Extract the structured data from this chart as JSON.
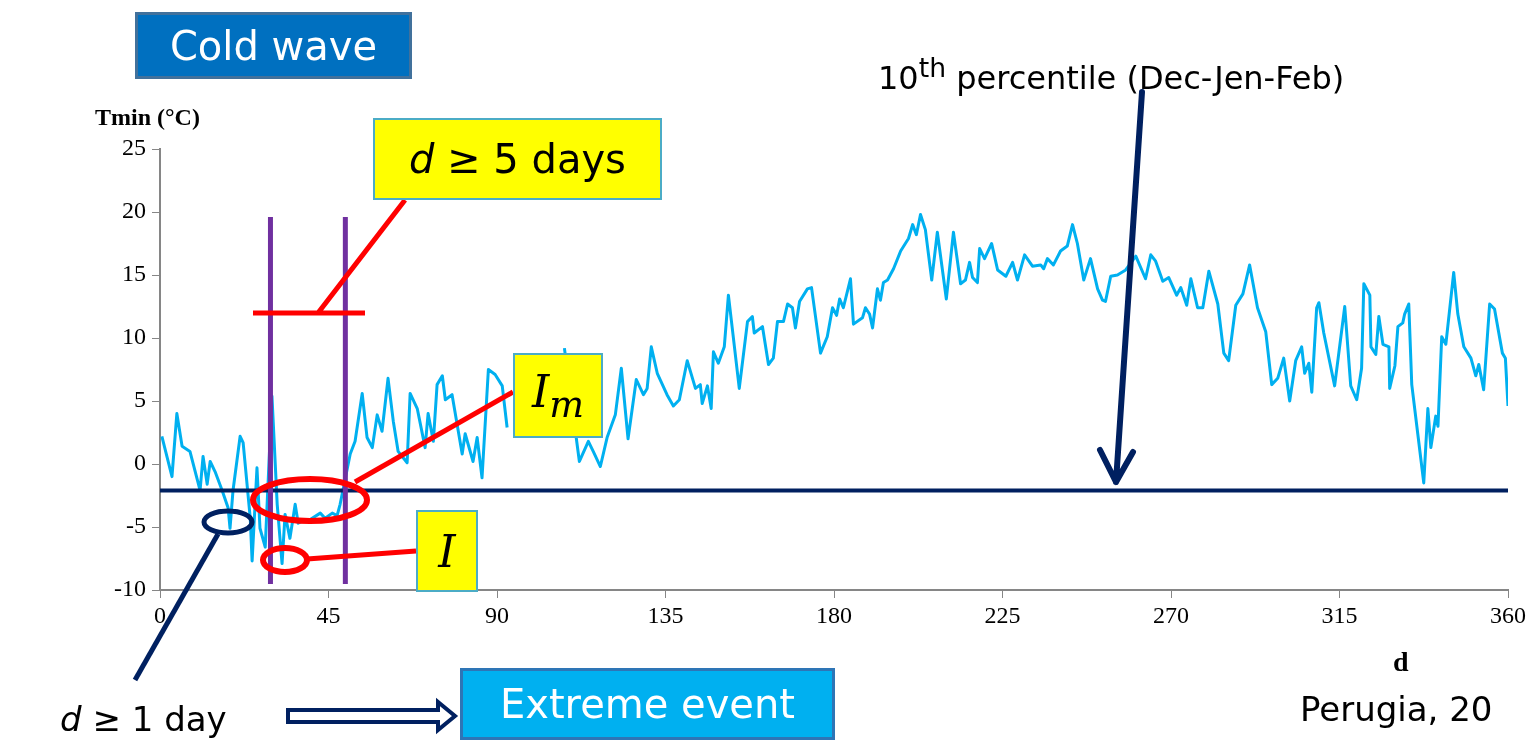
{
  "chart_data": {
    "type": "line",
    "xlabel": "d",
    "ylabel": "Tmin (°C)",
    "x": [
      0.5,
      3.2,
      4.5,
      5.9,
      8,
      10.7,
      11.5,
      12.6,
      13.4,
      14.7,
      16.6,
      18.2,
      18.7,
      19.5,
      21.4,
      22.2,
      24.1,
      24.6,
      25.9,
      26.7,
      28.1,
      29.9,
      31.3,
      32.6,
      33.4,
      34.7,
      36.1,
      36.9,
      38.2,
      40.1,
      42.8,
      44.1,
      46,
      47.3,
      48.1,
      50.8,
      52.1,
      54,
      55.3,
      56.7,
      58,
      59.3,
      60.9,
      62.3,
      63.6,
      66,
      66.8,
      68.7,
      70.8,
      71.6,
      73,
      74,
      75.4,
      76.2,
      78,
      80.7,
      81.5,
      83.6,
      84.7,
      86,
      87.7,
      89.5,
      91.4,
      92.7,
      97,
      104,
      108,
      112,
      114.4,
      115.7,
      117.6,
      119.4,
      121.6,
      123.2,
      125,
      127.2,
      129.1,
      130.1,
      131.2,
      132.8,
      135.4,
      137.1,
      138.7,
      140.8,
      143,
      144.3,
      144.8,
      146.2,
      147.2,
      147.8,
      149.1,
      150.7,
      151.8,
      154.7,
      156.9,
      158.2,
      158.7,
      160.9,
      162.5,
      163.8,
      164.9,
      166.5,
      167.6,
      168.9,
      169.7,
      170.8,
      172.9,
      174,
      176.4,
      178.2,
      179.6,
      180.7,
      181.5,
      182.5,
      184.4,
      185.2,
      187.6,
      188.4,
      189.5,
      190.3,
      191.6,
      192.4,
      193.2,
      194.3,
      195.9,
      197.8,
      199.9,
      201,
      202,
      203.1,
      204.4,
      206.1,
      207.6,
      210,
      211.9,
      213.8,
      215.1,
      216.2,
      217,
      218.3,
      218.9,
      220.2,
      222.1,
      223.7,
      225.9,
      227.7,
      229,
      230.9,
      233,
      235.2,
      236,
      237,
      238.6,
      240.5,
      242.3,
      243.7,
      245,
      246.7,
      248.5,
      250.4,
      251.7,
      252.5,
      253.9,
      255.7,
      257.9,
      260.6,
      263.2,
      264.6,
      265.9,
      267.8,
      269.4,
      271.5,
      272.6,
      274.2,
      275.3,
      277.1,
      278.5,
      280.1,
      282.5,
      284.1,
      285.4,
      287.3,
      289.2,
      291,
      293.1,
      295.3,
      296.9,
      298.5,
      300.1,
      301.7,
      303.3,
      304.9,
      305.7,
      306.8,
      307.6,
      308.9,
      309.5,
      310.8,
      313.7,
      316.4,
      318,
      319.6,
      320.9,
      321.5,
      323.1,
      323.4,
      324.7,
      325.5,
      326.6,
      328.2,
      328.4,
      329.8,
      330.6,
      331.9,
      332.4,
      333.5,
      334.3,
      335.9,
      337.5,
      338.6,
      339.4,
      340.7,
      341.3,
      342.3,
      343.4,
      345.5,
      346.6,
      348.2,
      350.1,
      351.4,
      352.2,
      353.5,
      355.1,
      356.4,
      358.5,
      359.3,
      360
    ],
    "series": [
      {
        "color": "#00b0f0",
        "values": [
          2.2,
          -1.0,
          4.0,
          1.4,
          1.0,
          -2.1,
          0.6,
          -1.6,
          0.2,
          -0.6,
          -2.1,
          -3.5,
          -5.1,
          -2.1,
          2.2,
          1.7,
          -4.3,
          -7.7,
          -0.3,
          -5.1,
          -6.6,
          5.4,
          -3.2,
          -7.9,
          -4.0,
          -5.9,
          -3.2,
          -4.7,
          -4.5,
          -4.4,
          -3.9,
          -4.3,
          -3.9,
          -4.1,
          -3.2,
          0.8,
          1.8,
          5.6,
          2.1,
          1.3,
          3.9,
          2.6,
          6.8,
          3.4,
          1.0,
          0.1,
          5.6,
          4.4,
          1.3,
          4.0,
          1.8,
          6.3,
          7.0,
          5.1,
          5.5,
          0.8,
          2.4,
          0.2,
          2.1,
          -1.1,
          7.5,
          7.1,
          6.2,
          2.9,
          null,
          null,
          9.2,
          0.2,
          1.8,
          1.0,
          -0.2,
          2.1,
          3.9,
          7.6,
          2.0,
          6.7,
          5.5,
          6.0,
          9.3,
          7.2,
          5.5,
          4.6,
          5.1,
          8.2,
          6.0,
          6.3,
          4.8,
          6.2,
          4.4,
          8.9,
          8.0,
          9.3,
          13.4,
          6.0,
          11.3,
          11.7,
          10.4,
          10.9,
          7.9,
          8.4,
          11.3,
          11.3,
          12.7,
          12.4,
          10.8,
          12.9,
          13.9,
          14.0,
          8.8,
          10.1,
          12.4,
          11.8,
          13.1,
          12.4,
          14.7,
          11.1,
          11.6,
          12.4,
          11.9,
          10.8,
          13.9,
          13.0,
          14.4,
          14.6,
          15.5,
          16.9,
          17.9,
          19.0,
          18.2,
          19.8,
          18.6,
          14.6,
          18.4,
          13.1,
          18.4,
          14.3,
          14.6,
          16.0,
          14.8,
          14.4,
          17.1,
          16.3,
          17.5,
          15.4,
          14.9,
          16.0,
          14.6,
          16.6,
          15.7,
          15.8,
          15.5,
          16.3,
          15.8,
          16.9,
          17.3,
          19.0,
          17.5,
          14.6,
          16.3,
          13.9,
          13.0,
          12.9,
          14.9,
          15.0,
          15.4,
          16.5,
          14.7,
          16.6,
          16.1,
          14.5,
          14.8,
          13.4,
          14.0,
          12.6,
          14.7,
          12.4,
          12.4,
          15.3,
          12.7,
          8.8,
          8.2,
          12.6,
          13.5,
          15.8,
          12.4,
          10.5,
          6.3,
          6.8,
          8.4,
          5.0,
          8.2,
          9.3,
          7.2,
          8.0,
          5.7,
          12.4,
          12.8,
          10.4,
          6.2,
          12.5,
          6.2,
          5.1,
          7.6,
          14.3,
          13.4,
          9.3,
          8.7,
          11.7,
          9.5,
          9.3,
          6.0,
          7.8,
          10.9,
          11.2,
          11.9,
          12.7,
          6.3,
          2.4,
          -1.5,
          4.4,
          1.3,
          3.8,
          3.0,
          10.1,
          9.5,
          15.2,
          11.9,
          9.3,
          8.4,
          7.0,
          7.9,
          5.9,
          12.7,
          12.3,
          8.8,
          8.4,
          4.6
        ]
      }
    ],
    "xlim": [
      0,
      360
    ],
    "xticks": [
      0,
      45,
      90,
      135,
      180,
      225,
      270,
      315,
      360
    ],
    "ylim": [
      -10,
      25
    ],
    "yticks": [
      -10,
      -5,
      0,
      5,
      10,
      15,
      20,
      25
    ],
    "grid": false,
    "legend": false,
    "marker": "none",
    "line_style": "solid",
    "ref_lines": [
      {
        "axis": "y",
        "value": -2.1,
        "label": "10$^{th}$ percentile (Dec-Jen-Feb)",
        "color": "#002060"
      },
      {
        "axis": "x",
        "value": 29.5,
        "color": "#7030a0"
      },
      {
        "axis": "x",
        "value": 49.5,
        "color": "#7030a0"
      }
    ],
    "annotations": [
      "Cold wave",
      "d ≥ 5 days",
      "I$_{m}$",
      "I",
      "d ≥ 1 day",
      "Extreme event",
      "Perugia, 20"
    ]
  }
}
